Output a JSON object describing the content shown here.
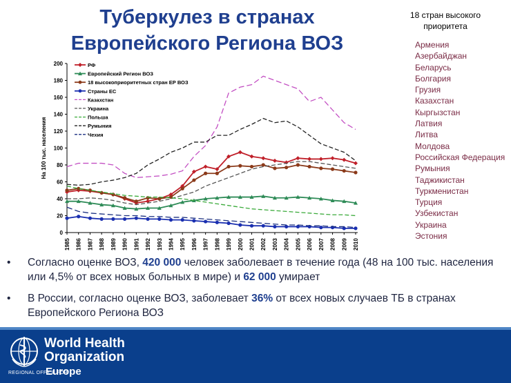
{
  "header": {
    "title_line1": "Туберкулез в странах",
    "title_line2": "Европейского Региона ВОЗ"
  },
  "side_panel": {
    "heading_line1": "18 стран высокого",
    "heading_line2": "приоритета",
    "countries": [
      "Армения",
      "Азербайджан",
      "Беларусь",
      "Болгария",
      "Грузия",
      "Казахстан",
      "Кыргызстан",
      "Латвия",
      "Литва",
      "Молдова",
      "Российская Федерация",
      "Румыния",
      "Таджикистан",
      "Туркменистан",
      "Турция",
      "Узбекистан",
      "Украина",
      "Эстония"
    ]
  },
  "bullets": [
    {
      "marker": "•",
      "parts": [
        "Согласно оценке ВОЗ, ",
        "420 000",
        " человек заболевает в течение года (48 на 100 тыс. населения или 4,5% от всех новых больных в мире) и ",
        "62 000",
        " умирает"
      ]
    },
    {
      "marker": "•",
      "parts": [
        "В России, согласно оценке ВОЗ, заболевает ",
        "36%",
        " от всех новых случаев ТБ в странах Европейского Региона ВОЗ"
      ]
    }
  ],
  "footer": {
    "org_line1": "World Health",
    "org_line2": "Organization",
    "office": "REGIONAL OFFICE FOR",
    "region": "Europe"
  },
  "colors": {
    "title": "#1f3f8f",
    "footer_bg": "#0a3f8c",
    "country_text": "#7a2b45"
  },
  "chart_data": {
    "type": "line",
    "ylabel": "На 100 тыс. населения",
    "ylim": [
      0,
      200
    ],
    "yticks": [
      0,
      20,
      40,
      60,
      80,
      100,
      120,
      140,
      160,
      180,
      200
    ],
    "legend_position": "top-left",
    "x": [
      "1985",
      "1986",
      "1987",
      "1988",
      "1989",
      "1990",
      "1991",
      "1992",
      "1993",
      "1994",
      "1995",
      "1996",
      "1997",
      "1998",
      "1999",
      "2000",
      "2001",
      "2002",
      "2003",
      "2004",
      "2005",
      "2006",
      "2007",
      "2008",
      "2009",
      "2010"
    ],
    "series": [
      {
        "name": "РФ",
        "color": "#c0202a",
        "dash": "solid",
        "marker": "diamond",
        "values": [
          48,
          50,
          49,
          47,
          45,
          40,
          35,
          37,
          40,
          45,
          55,
          72,
          78,
          75,
          90,
          95,
          90,
          88,
          85,
          83,
          88,
          87,
          87,
          88,
          86,
          82
        ]
      },
      {
        "name": "Европейский Регион ВОЗ",
        "color": "#2e8b57",
        "dash": "solid",
        "marker": "triangle",
        "values": [
          37,
          37,
          35,
          33,
          32,
          29,
          28,
          29,
          29,
          32,
          36,
          38,
          40,
          41,
          42,
          42,
          42,
          43,
          41,
          41,
          42,
          41,
          40,
          38,
          37,
          35
        ]
      },
      {
        "name": "18 высокоприоритетных стран ЕР ВОЗ",
        "color": "#8b3a1a",
        "dash": "solid",
        "marker": "circle",
        "values": [
          50,
          52,
          50,
          47,
          45,
          41,
          37,
          41,
          40,
          42,
          52,
          62,
          70,
          70,
          78,
          79,
          78,
          80,
          76,
          77,
          80,
          78,
          76,
          75,
          73,
          71
        ]
      },
      {
        "name": "Страны ЕС",
        "color": "#1a2fb0",
        "dash": "solid",
        "marker": "circle",
        "values": [
          17,
          19,
          17,
          16,
          16,
          16,
          17,
          16,
          16,
          15,
          15,
          14,
          13,
          12,
          11,
          9,
          8,
          8,
          7,
          7,
          7,
          7,
          6,
          6,
          5,
          5
        ]
      },
      {
        "name": "Казахстан",
        "color": "#c34fc3",
        "dash": "8,4",
        "marker": "none",
        "values": [
          78,
          82,
          82,
          82,
          80,
          70,
          65,
          66,
          67,
          69,
          73,
          90,
          103,
          125,
          165,
          172,
          175,
          185,
          180,
          175,
          170,
          155,
          160,
          145,
          130,
          122
        ]
      },
      {
        "name": "Украина",
        "color": "#555555",
        "dash": "6,3",
        "marker": "none",
        "values": [
          40,
          40,
          41,
          40,
          38,
          35,
          33,
          35,
          37,
          40,
          44,
          48,
          55,
          60,
          65,
          70,
          75,
          78,
          80,
          82,
          84,
          84,
          82,
          80,
          78,
          76
        ]
      },
      {
        "name": "Польша",
        "color": "#3aaa3a",
        "dash": "6,3",
        "marker": "none",
        "values": [
          55,
          52,
          50,
          48,
          46,
          44,
          43,
          42,
          42,
          41,
          40,
          38,
          36,
          34,
          32,
          30,
          28,
          27,
          26,
          25,
          24,
          23,
          22,
          21,
          21,
          20
        ]
      },
      {
        "name": "Румыния",
        "color": "#222222",
        "dash": "6,3",
        "marker": "none",
        "values": [
          57,
          56,
          57,
          60,
          62,
          65,
          70,
          80,
          87,
          95,
          100,
          107,
          107,
          115,
          115,
          122,
          128,
          135,
          130,
          132,
          125,
          115,
          105,
          100,
          95,
          85
        ]
      },
      {
        "name": "Чехия",
        "color": "#1a2f80",
        "dash": "8,4",
        "marker": "none",
        "values": [
          30,
          25,
          23,
          22,
          21,
          20,
          20,
          19,
          19,
          18,
          18,
          17,
          16,
          15,
          14,
          13,
          12,
          11,
          10,
          9,
          9,
          8,
          8,
          7,
          7,
          6
        ]
      }
    ]
  }
}
